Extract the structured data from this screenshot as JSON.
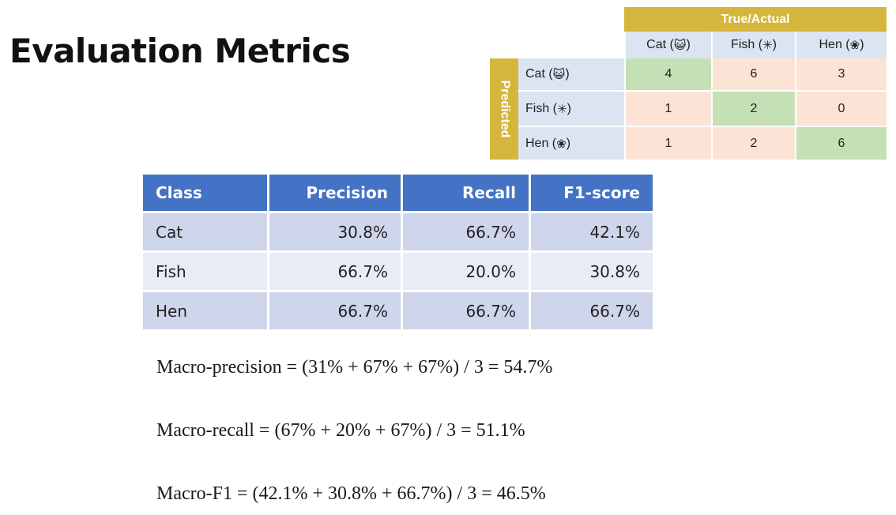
{
  "title": "Evaluation Metrics",
  "confusion_matrix": {
    "true_header": "True/Actual",
    "predicted_label": "Predicted",
    "columns": [
      {
        "label": "Cat (",
        "icon": "cat-face-icon",
        "glyph": "😺",
        "close": ")"
      },
      {
        "label": "Fish (",
        "icon": "fish-icon",
        "glyph": "✳",
        "close": ")"
      },
      {
        "label": "Hen (",
        "icon": "hen-icon",
        "glyph": "❀",
        "close": ")"
      }
    ],
    "rows": [
      {
        "label": "Cat (",
        "icon": "cat-face-icon",
        "glyph": "😺",
        "close": ")",
        "values": [
          "4",
          "6",
          "3"
        ]
      },
      {
        "label": "Fish (",
        "icon": "fish-icon",
        "glyph": "✳",
        "close": ")",
        "values": [
          "1",
          "2",
          "0"
        ]
      },
      {
        "label": "Hen (",
        "icon": "hen-icon",
        "glyph": "❀",
        "close": ")",
        "values": [
          "1",
          "2",
          "6"
        ]
      }
    ],
    "diagonal_color": "#c5e0b4",
    "offdiag_color": "#fbe3d6",
    "header_color": "#d5b53b"
  },
  "metrics_table": {
    "headers": [
      "Class",
      "Precision",
      "Recall",
      "F1-score"
    ],
    "rows": [
      [
        "Cat",
        "30.8%",
        "66.7%",
        "42.1%"
      ],
      [
        "Fish",
        "66.7%",
        "20.0%",
        "30.8%"
      ],
      [
        "Hen",
        "66.7%",
        "66.7%",
        "66.7%"
      ]
    ],
    "header_color": "#4472c4"
  },
  "formulas": {
    "macro_precision": "Macro-precision = (31% + 67% + 67%) / 3 = 54.7%",
    "macro_recall": "Macro-recall = (67% + 20% + 67%) / 3 = 51.1%",
    "macro_f1": "Macro-F1 = (42.1% + 30.8% + 66.7%) / 3 = 46.5%"
  }
}
